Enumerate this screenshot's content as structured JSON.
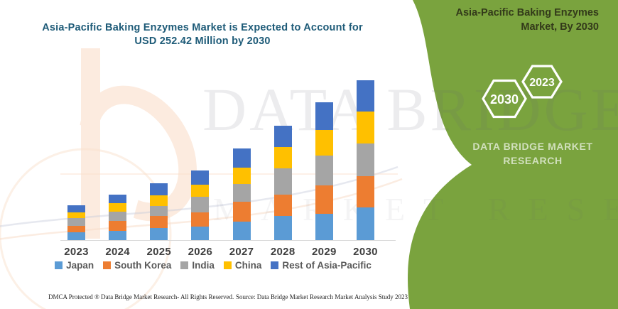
{
  "page": {
    "background": "#ffffff"
  },
  "chart": {
    "title_line1": "Asia-Pacific Baking Enzymes Market is Expected to Account for",
    "title_line2": "USD 252.42 Million by 2030",
    "title_color": "#1E5B78"
  },
  "chart_data": {
    "type": "bar",
    "stacked": true,
    "title": "Asia-Pacific Baking Enzymes Market is Expected to Account for USD 252.42 Million by 2030",
    "unit": "USD Million",
    "xlabel": "",
    "ylabel": "",
    "ylim": [
      0,
      260
    ],
    "grid": false,
    "y_axis_visible": false,
    "legend_position": "bottom",
    "categories": [
      "2023",
      "2024",
      "2025",
      "2026",
      "2027",
      "2028",
      "2029",
      "2030"
    ],
    "series": [
      {
        "name": "Japan",
        "color": "#5B9BD5",
        "values": [
          12.4,
          14.3,
          19.5,
          21.8,
          28.8,
          38.2,
          41.9,
          52.0
        ]
      },
      {
        "name": "South Korea",
        "color": "#ED7D31",
        "values": [
          10.1,
          16.1,
          19.0,
          22.5,
          31.9,
          33.7,
          44.9,
          48.8
        ]
      },
      {
        "name": "India",
        "color": "#A5A5A5",
        "values": [
          12.0,
          15.1,
          15.0,
          24.3,
          28.1,
          41.1,
          46.8,
          52.3
        ]
      },
      {
        "name": "China",
        "color": "#FFC000",
        "values": [
          9.4,
          13.0,
          16.9,
          18.8,
          26.2,
          33.7,
          41.1,
          50.5
        ]
      },
      {
        "name": "Rest of Asia-Pacific",
        "color": "#4472C4",
        "values": [
          11.6,
          13.9,
          19.9,
          22.5,
          30.0,
          34.8,
          43.1,
          48.82
        ]
      }
    ],
    "totals": [
      55.5,
      72.4,
      90.3,
      109.9,
      145.0,
      181.5,
      217.8,
      252.42
    ],
    "highlight_value": "USD 252.42 Million by 2030"
  },
  "watermark": {
    "line1": "DATA BRIDGE",
    "line2": "MARKET RESEARCH"
  },
  "panel": {
    "background": "#7AA33E",
    "title": "Asia-Pacific Baking Enzymes Market, By 2030",
    "hexagons": [
      {
        "label": "2030"
      },
      {
        "label": "2023"
      }
    ],
    "brand_line1": "DATA BRIDGE MARKET",
    "brand_line2": "RESEARCH"
  },
  "footer": {
    "left": "DMCA Protected ® Data Bridge Market Research-  All Rights Reserved.",
    "right": "Source: Data Bridge Market Research  Market Analysis Study 2023"
  }
}
